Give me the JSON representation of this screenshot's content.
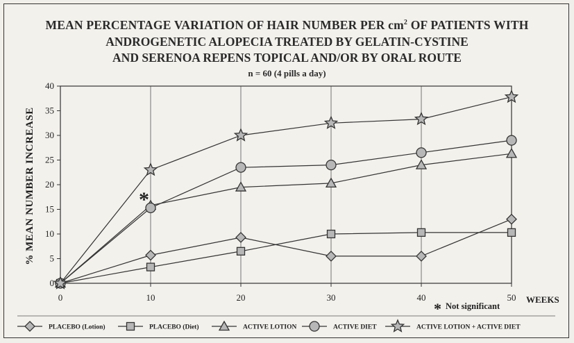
{
  "chart_data": {
    "type": "line",
    "title_line1": "MEAN PERCENTAGE VARIATION OF HAIR NUMBER PER cm",
    "title_line1_sup": "2",
    "title_line1_end": " OF PATIENTS WITH",
    "title_line2": "ANDROGENETIC ALOPECIA TREATED BY GELATIN-CYSTINE",
    "title_line3": "AND SERENOA REPENS TOPICAL  AND/OR BY ORAL ROUTE",
    "subtitle": "n = 60  (4 pills a day)",
    "ylabel": "% MEAN NUMBER INCREASE",
    "xlabel": "WEEKS",
    "x": [
      0,
      10,
      20,
      30,
      40,
      50
    ],
    "x_ticks": [
      "0",
      "10",
      "20",
      "30",
      "40",
      "50"
    ],
    "y_ticks": [
      "0",
      "5",
      "10",
      "15",
      "20",
      "25",
      "30",
      "35",
      "40"
    ],
    "ylim": [
      0,
      40
    ],
    "xlim": [
      0,
      50
    ],
    "grid": "vertical",
    "legend_position": "bottom",
    "annotation_star": "*",
    "annotation_text": "Not significant",
    "series": [
      {
        "name": "PLACEBO (Lotion)",
        "marker": "diamond",
        "values": [
          0,
          5.7,
          9.3,
          5.5,
          5.5,
          13
        ]
      },
      {
        "name": "PLACEBO (Diet)",
        "marker": "square",
        "values": [
          0,
          3.3,
          6.5,
          10,
          10.3,
          10.3
        ]
      },
      {
        "name": "ACTIVE LOTION",
        "marker": "triangle",
        "values": [
          0,
          15.8,
          19.5,
          20.3,
          24,
          26.3
        ]
      },
      {
        "name": "ACTIVE DIET",
        "marker": "circle",
        "values": [
          0,
          15.3,
          23.5,
          24,
          26.5,
          29
        ]
      },
      {
        "name": "ACTIVE LOTION + ACTIVE DIET",
        "marker": "star",
        "values": [
          0,
          23,
          30,
          32.5,
          33.3,
          37.8
        ]
      }
    ]
  }
}
